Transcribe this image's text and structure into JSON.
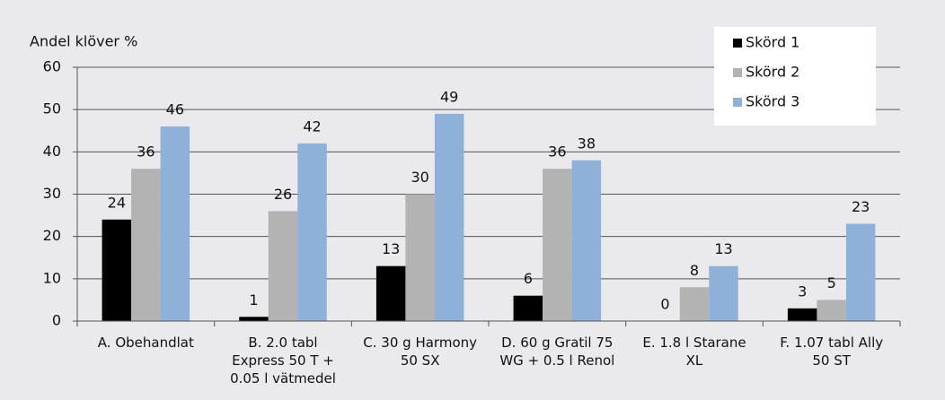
{
  "chart_data": {
    "type": "bar",
    "y_label": "Andel klöver %",
    "categories": [
      "A. Obehandlat",
      "B. 2.0 tabl Express 50 T + 0.05 l vätmedel",
      "C. 30 g Harmony 50 SX",
      "D. 60 g Gratil 75 WG + 0.5 l Renol",
      "E. 1.8 l Starane XL",
      "F. 1.07 tabl Ally 50 ST"
    ],
    "series": [
      {
        "name": "Skörd 1",
        "color": "#000000",
        "values": [
          24,
          1,
          13,
          6,
          0,
          3
        ]
      },
      {
        "name": "Skörd 2",
        "color": "#b3b3b3",
        "values": [
          36,
          26,
          30,
          36,
          8,
          5
        ]
      },
      {
        "name": "Skörd 3",
        "color": "#8fb1d9",
        "values": [
          46,
          42,
          49,
          38,
          13,
          23
        ]
      }
    ],
    "ylim": [
      0,
      60
    ],
    "yticks": [
      0,
      10,
      20,
      30,
      40,
      50,
      60
    ],
    "grid": true,
    "legend": "top-right"
  }
}
